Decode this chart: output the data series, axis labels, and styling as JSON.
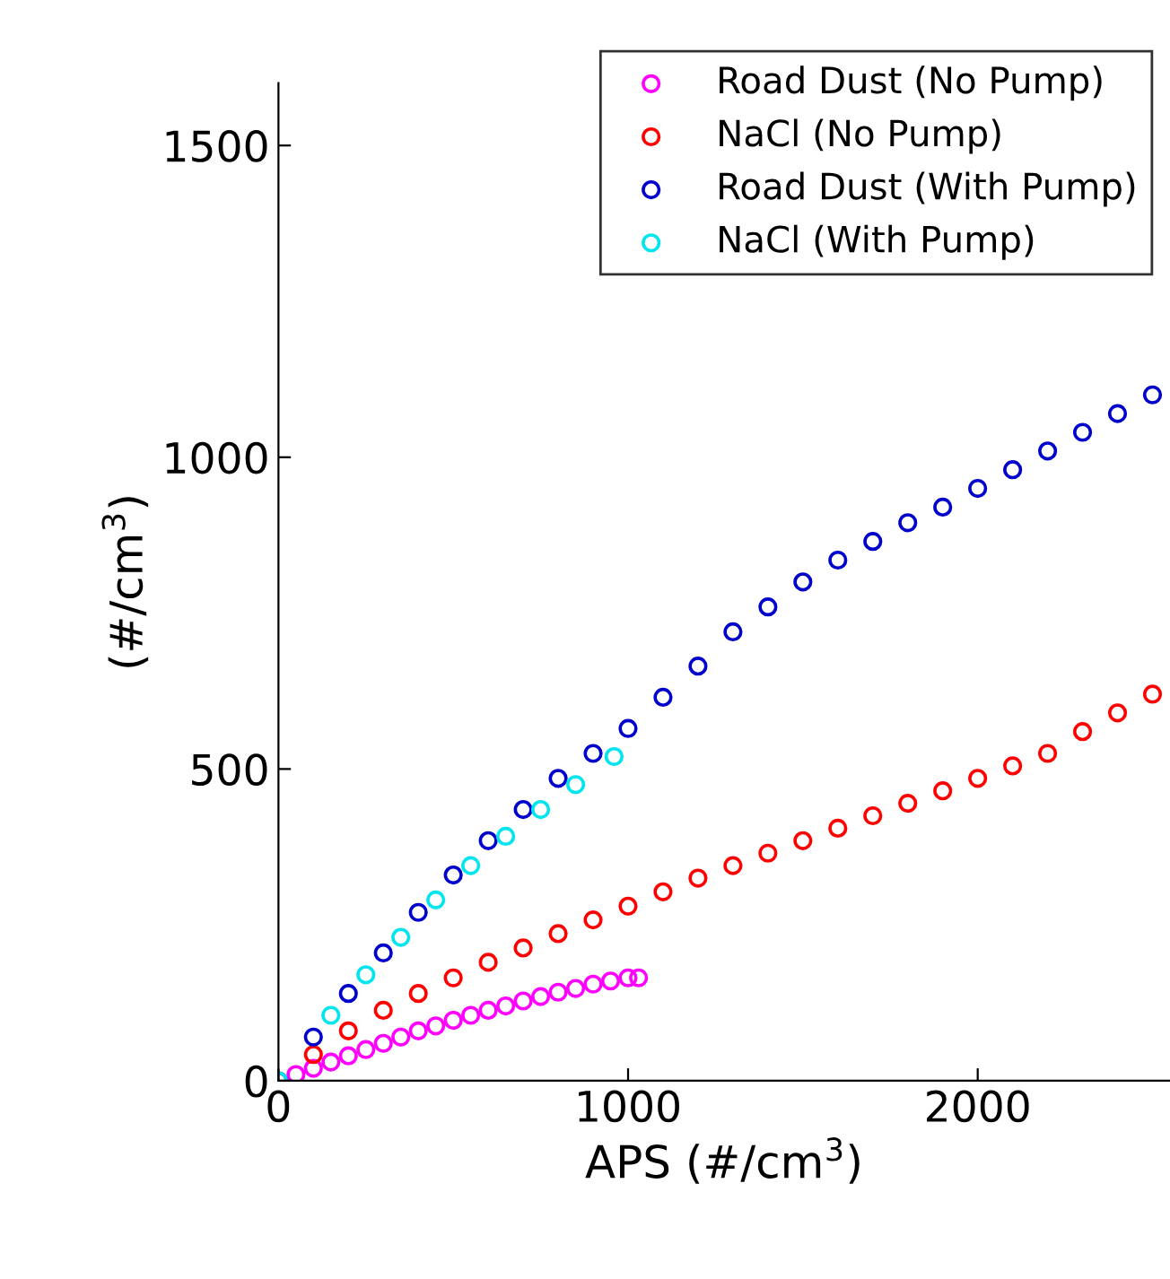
{
  "chart_data": {
    "type": "scatter",
    "xlabel": "APS (#/cm$^{3}$)",
    "ylabel": "(#/cm$^{3}$)",
    "xlim": [
      0,
      2550
    ],
    "ylim": [
      0,
      1600
    ],
    "xticks": [
      0,
      1000,
      2000
    ],
    "yticks": [
      0,
      500,
      1000,
      1500
    ],
    "marker": "circle",
    "legend": "top right",
    "grid": false,
    "series": [
      {
        "name": "Road Dust (No Pump)",
        "color": "#ff00ff",
        "x": [
          50,
          100,
          150,
          200,
          250,
          300,
          350,
          400,
          450,
          500,
          550,
          600,
          650,
          700,
          750,
          800,
          850,
          900,
          950,
          1000,
          1030
        ],
        "values": [
          10,
          20,
          30,
          40,
          50,
          60,
          70,
          80,
          88,
          97,
          105,
          113,
          120,
          128,
          135,
          142,
          148,
          155,
          160,
          165,
          165
        ]
      },
      {
        "name": "NaCl (No Pump)",
        "color": "#ff0000",
        "x": [
          100,
          200,
          300,
          400,
          500,
          600,
          700,
          800,
          900,
          1000,
          1100,
          1200,
          1300,
          1400,
          1500,
          1600,
          1700,
          1800,
          1900,
          2000,
          2100,
          2200,
          2300,
          2400,
          2500
        ],
        "values": [
          42,
          80,
          113,
          140,
          165,
          190,
          213,
          236,
          258,
          280,
          303,
          325,
          345,
          365,
          385,
          405,
          425,
          445,
          465,
          485,
          505,
          525,
          560,
          590,
          620
        ]
      },
      {
        "name": "Road Dust (With Pump)",
        "color": "#0000cc",
        "x": [
          0,
          100,
          200,
          300,
          400,
          500,
          600,
          700,
          800,
          900,
          1000,
          1100,
          1200,
          1300,
          1400,
          1500,
          1600,
          1700,
          1800,
          1900,
          2000,
          2100,
          2200,
          2300,
          2400,
          2500
        ],
        "values": [
          0,
          70,
          140,
          205,
          270,
          330,
          385,
          435,
          485,
          525,
          565,
          615,
          665,
          720,
          760,
          800,
          835,
          865,
          895,
          920,
          950,
          980,
          1010,
          1040,
          1070,
          1100
        ]
      },
      {
        "name": "NaCl (With Pump)",
        "color": "#00e5ee",
        "x": [
          0,
          150,
          250,
          350,
          450,
          550,
          650,
          750,
          850,
          960
        ],
        "values": [
          0,
          105,
          170,
          230,
          290,
          345,
          392,
          435,
          475,
          520
        ]
      }
    ]
  }
}
